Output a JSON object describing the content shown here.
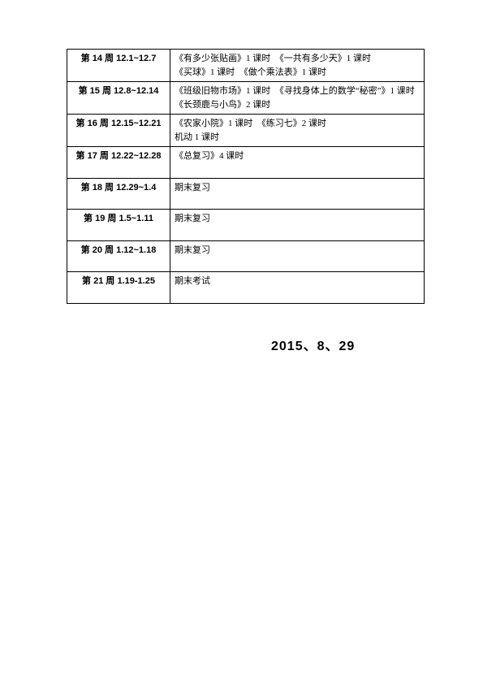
{
  "table": {
    "rows": [
      {
        "week_label_prefix": "第 14 周",
        "week_dates": " 12.1~12.7",
        "content": "《有多少张贴画》1 课时　《一共有多少天》1 课时\n《买球》1 课时　《做个乘法表》1 课时",
        "tall": false
      },
      {
        "week_label_prefix": "第 15 周",
        "week_dates": " 12.8~12.14",
        "content": "《班级旧物市场》1 课时　《寻找身体上的数学“秘密”》1 课时　《长颈鹿与小鸟》2 课时",
        "tall": false
      },
      {
        "week_label_prefix": "第 16 周",
        "week_dates": " 12.15~12.21",
        "content": "《农家小院》1 课时　《练习七》2 课时\n机动 1 课时",
        "tall": false
      },
      {
        "week_label_prefix": "第 17 周",
        "week_dates": " 12.22~12.28",
        "content": "《总复习》4 课时",
        "tall": true
      },
      {
        "week_label_prefix": "第 18 周",
        "week_dates": " 12.29~1.4",
        "content": "期末复习",
        "tall": true
      },
      {
        "week_label_prefix": "第 19 周",
        "week_dates": " 1.5~1.11",
        "content": "期末复习",
        "tall": true
      },
      {
        "week_label_prefix": "第 20 周",
        "week_dates": " 1.12~1.18",
        "content": "期末复习",
        "tall": true
      },
      {
        "week_label_prefix": "第 21 周",
        "week_dates": " 1.19-1.25",
        "content": "期末考试",
        "tall": true
      }
    ]
  },
  "footer_date": "2015、8、29"
}
